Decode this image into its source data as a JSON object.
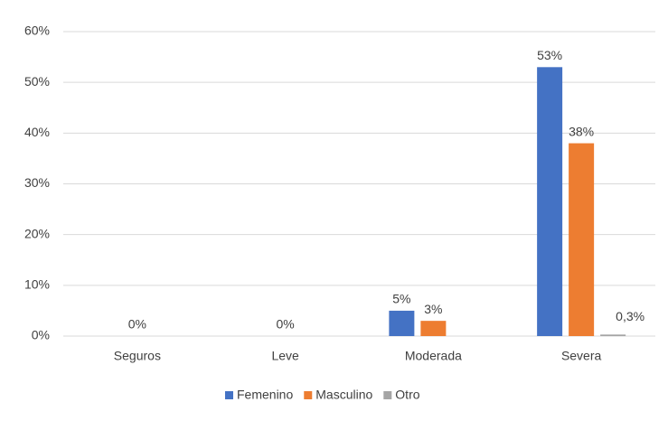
{
  "chart_data": {
    "type": "bar",
    "categories": [
      "Seguros",
      "Leve",
      "Moderada",
      "Severa"
    ],
    "series": [
      {
        "name": "Femenino",
        "color": "#4472c4",
        "values": [
          0,
          0,
          5,
          53
        ],
        "value_labels": [
          null,
          null,
          "5%",
          "53%"
        ]
      },
      {
        "name": "Masculino",
        "color": "#ed7d31",
        "values": [
          0,
          0,
          3,
          38
        ],
        "value_labels": [
          "0%",
          "0%",
          "3%",
          "38%"
        ]
      },
      {
        "name": "Otro",
        "color": "#a5a5a5",
        "values": [
          0,
          0,
          0,
          0.3
        ],
        "value_labels": [
          null,
          null,
          null,
          "0,3%"
        ]
      }
    ],
    "ylim": [
      0,
      60
    ],
    "yticks": [
      {
        "value": 0,
        "label": "0%"
      },
      {
        "value": 10,
        "label": "10%"
      },
      {
        "value": 20,
        "label": "20%"
      },
      {
        "value": 30,
        "label": "30%"
      },
      {
        "value": 40,
        "label": "40%"
      },
      {
        "value": 50,
        "label": "50%"
      },
      {
        "value": 60,
        "label": "60%"
      }
    ],
    "grid": true,
    "legend": "bottom"
  }
}
